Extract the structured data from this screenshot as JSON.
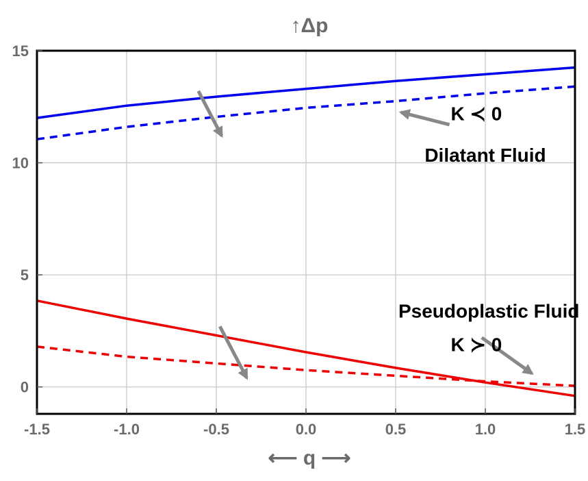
{
  "chart_data": {
    "type": "line",
    "title": "",
    "xlabel": "⟵ q ⟶",
    "ylabel": "↑Δp",
    "xlim": [
      -1.5,
      1.5
    ],
    "ylim": [
      -1.2,
      15
    ],
    "x_ticks": [
      -1.5,
      -1.0,
      -0.5,
      0.0,
      0.5,
      1.0,
      1.5
    ],
    "x_tick_labels": [
      "-1.5",
      "-1.0",
      "-0.5",
      "0.0",
      "0.5",
      "1.0",
      "1.5"
    ],
    "y_ticks": [
      0,
      5,
      10,
      15
    ],
    "y_tick_labels": [
      "0",
      "5",
      "10",
      "15"
    ],
    "grid": true,
    "colors": {
      "blue": "#0000ee",
      "red": "#ee0000",
      "arrow": "#888888",
      "grid": "#c8c8c8",
      "frame": "#000000"
    },
    "series": [
      {
        "color": "#0000ee",
        "style": "solid",
        "x": [
          -1.5,
          -1.0,
          -0.5,
          0.0,
          0.5,
          1.0,
          1.5
        ],
        "y": [
          12.0,
          12.55,
          12.95,
          13.3,
          13.65,
          13.95,
          14.25
        ]
      },
      {
        "color": "#0000ee",
        "style": "dashed",
        "x": [
          -1.5,
          -1.0,
          -0.5,
          0.0,
          0.5,
          1.0,
          1.5
        ],
        "y": [
          11.05,
          11.6,
          12.05,
          12.45,
          12.75,
          13.1,
          13.4
        ]
      },
      {
        "color": "#ee0000",
        "style": "solid",
        "x": [
          -1.5,
          -1.0,
          -0.5,
          0.0,
          0.5,
          1.0,
          1.5
        ],
        "y": [
          3.85,
          3.05,
          2.3,
          1.55,
          0.85,
          0.2,
          -0.4
        ]
      },
      {
        "color": "#ee0000",
        "style": "dashed",
        "x": [
          -1.5,
          -1.0,
          -0.5,
          0.0,
          0.5,
          1.0,
          1.5
        ],
        "y": [
          1.8,
          1.35,
          1.05,
          0.75,
          0.5,
          0.25,
          0.05
        ]
      }
    ],
    "annotations": [
      {
        "id": "k-neg",
        "text": "K ≺ 0",
        "x": 0.95,
        "y": 11.9,
        "anchor": "middle"
      },
      {
        "id": "dilatant",
        "text": "Dilatant Fluid",
        "x": 1.0,
        "y": 10.05,
        "anchor": "middle"
      },
      {
        "id": "pseudoplastic",
        "text": "Pseudoplastic Fluid",
        "x": 1.02,
        "y": 3.1,
        "anchor": "middle"
      },
      {
        "id": "k-pos",
        "text": "K ≻ 0",
        "x": 0.95,
        "y": 1.6,
        "anchor": "middle"
      }
    ],
    "arrows": [
      {
        "id": "blue-trend-arrow",
        "from": [
          -0.6,
          13.2
        ],
        "to": [
          -0.47,
          11.2
        ]
      },
      {
        "id": "dilatant-label-arrow",
        "from": [
          0.8,
          11.7
        ],
        "to": [
          0.53,
          12.25
        ]
      },
      {
        "id": "red-trend-arrow",
        "from": [
          -0.48,
          2.7
        ],
        "to": [
          -0.33,
          0.4
        ]
      },
      {
        "id": "pseudoplastic-label-arrow",
        "from": [
          0.98,
          2.2
        ],
        "to": [
          1.26,
          0.6
        ]
      }
    ]
  }
}
